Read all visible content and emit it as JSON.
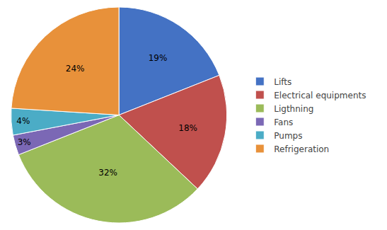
{
  "chart_data": {
    "type": "pie",
    "categories": [
      "Lifts",
      "Electrical equipments",
      "Ligthning",
      "Fans",
      "Pumps",
      "Refrigeration"
    ],
    "values": [
      19,
      18,
      32,
      3,
      4,
      24
    ],
    "value_labels": [
      "19%",
      "18%",
      "32%",
      "3%",
      "4%",
      "24%"
    ],
    "colors": [
      "#4472C4",
      "#C0504D",
      "#9BBB59",
      "#7B68B5",
      "#4BACC6",
      "#E8913A"
    ],
    "data_labels": true,
    "legend": "right"
  }
}
